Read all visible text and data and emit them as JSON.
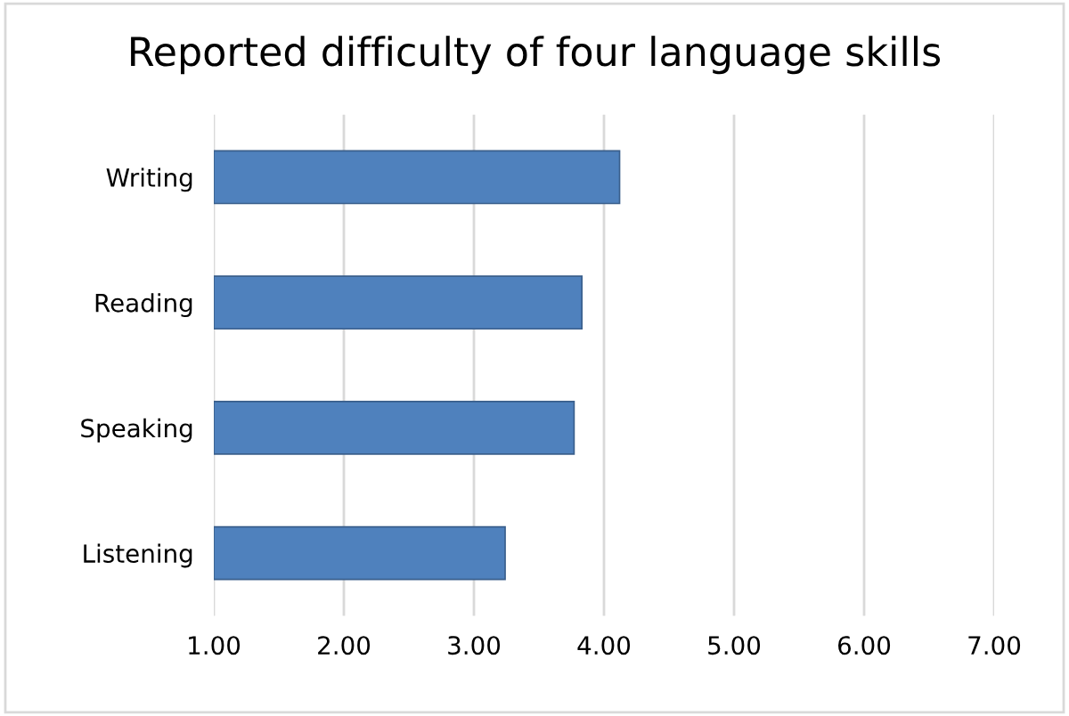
{
  "chart_data": {
    "type": "bar",
    "orientation": "horizontal",
    "title": "Reported difficulty of four language skills",
    "categories": [
      "Writing",
      "Reading",
      "Speaking",
      "Listening"
    ],
    "values": [
      4.12,
      3.83,
      3.77,
      3.24
    ],
    "color": "#4f81bd",
    "xlim": [
      1,
      7
    ],
    "xticks": [
      {
        "value": 1,
        "label": "1.00"
      },
      {
        "value": 2,
        "label": "2.00"
      },
      {
        "value": 3,
        "label": "3.00"
      },
      {
        "value": 4,
        "label": "4.00"
      },
      {
        "value": 5,
        "label": "5.00"
      },
      {
        "value": 6,
        "label": "6.00"
      },
      {
        "value": 7,
        "label": "7.00"
      }
    ],
    "grid": "x"
  }
}
